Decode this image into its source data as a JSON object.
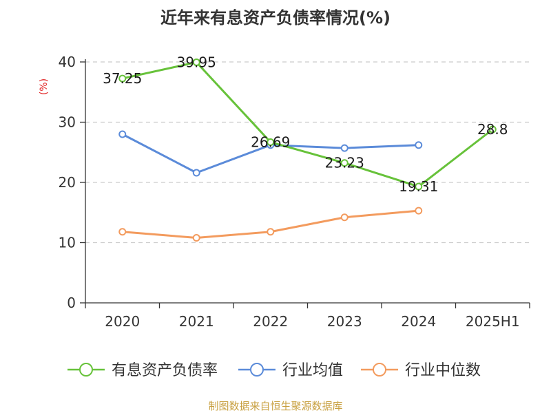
{
  "chart_data": {
    "type": "line",
    "title": "近年来有息资产负债率情况(%)",
    "xlabel": "",
    "ylabel": "(%)",
    "ylim": [
      0,
      40
    ],
    "yticks": [
      "0",
      "10",
      "20",
      "30",
      "40"
    ],
    "grid": true,
    "legend_position": "bottom",
    "categories": [
      "2020",
      "2021",
      "2022",
      "2023",
      "2024",
      "2025H1"
    ],
    "series": [
      {
        "name": "有息资产负债率",
        "color": "#67c23a",
        "values": [
          37.25,
          39.95,
          26.69,
          23.23,
          19.31,
          28.8
        ],
        "labels": [
          "37.25",
          "39.95",
          "26.69",
          "23.23",
          "19.31",
          "28.8"
        ]
      },
      {
        "name": "行业均值",
        "color": "#5b8bd9",
        "values": [
          28.0,
          21.6,
          26.2,
          25.7,
          26.2,
          null
        ]
      },
      {
        "name": "行业中位数",
        "color": "#f39b5e",
        "values": [
          11.8,
          10.8,
          11.8,
          14.2,
          15.3,
          null
        ]
      }
    ],
    "source": "制图数据来自恒生聚源数据库",
    "source_color": "#c8a040",
    "ylabel_color": "#e02020"
  }
}
